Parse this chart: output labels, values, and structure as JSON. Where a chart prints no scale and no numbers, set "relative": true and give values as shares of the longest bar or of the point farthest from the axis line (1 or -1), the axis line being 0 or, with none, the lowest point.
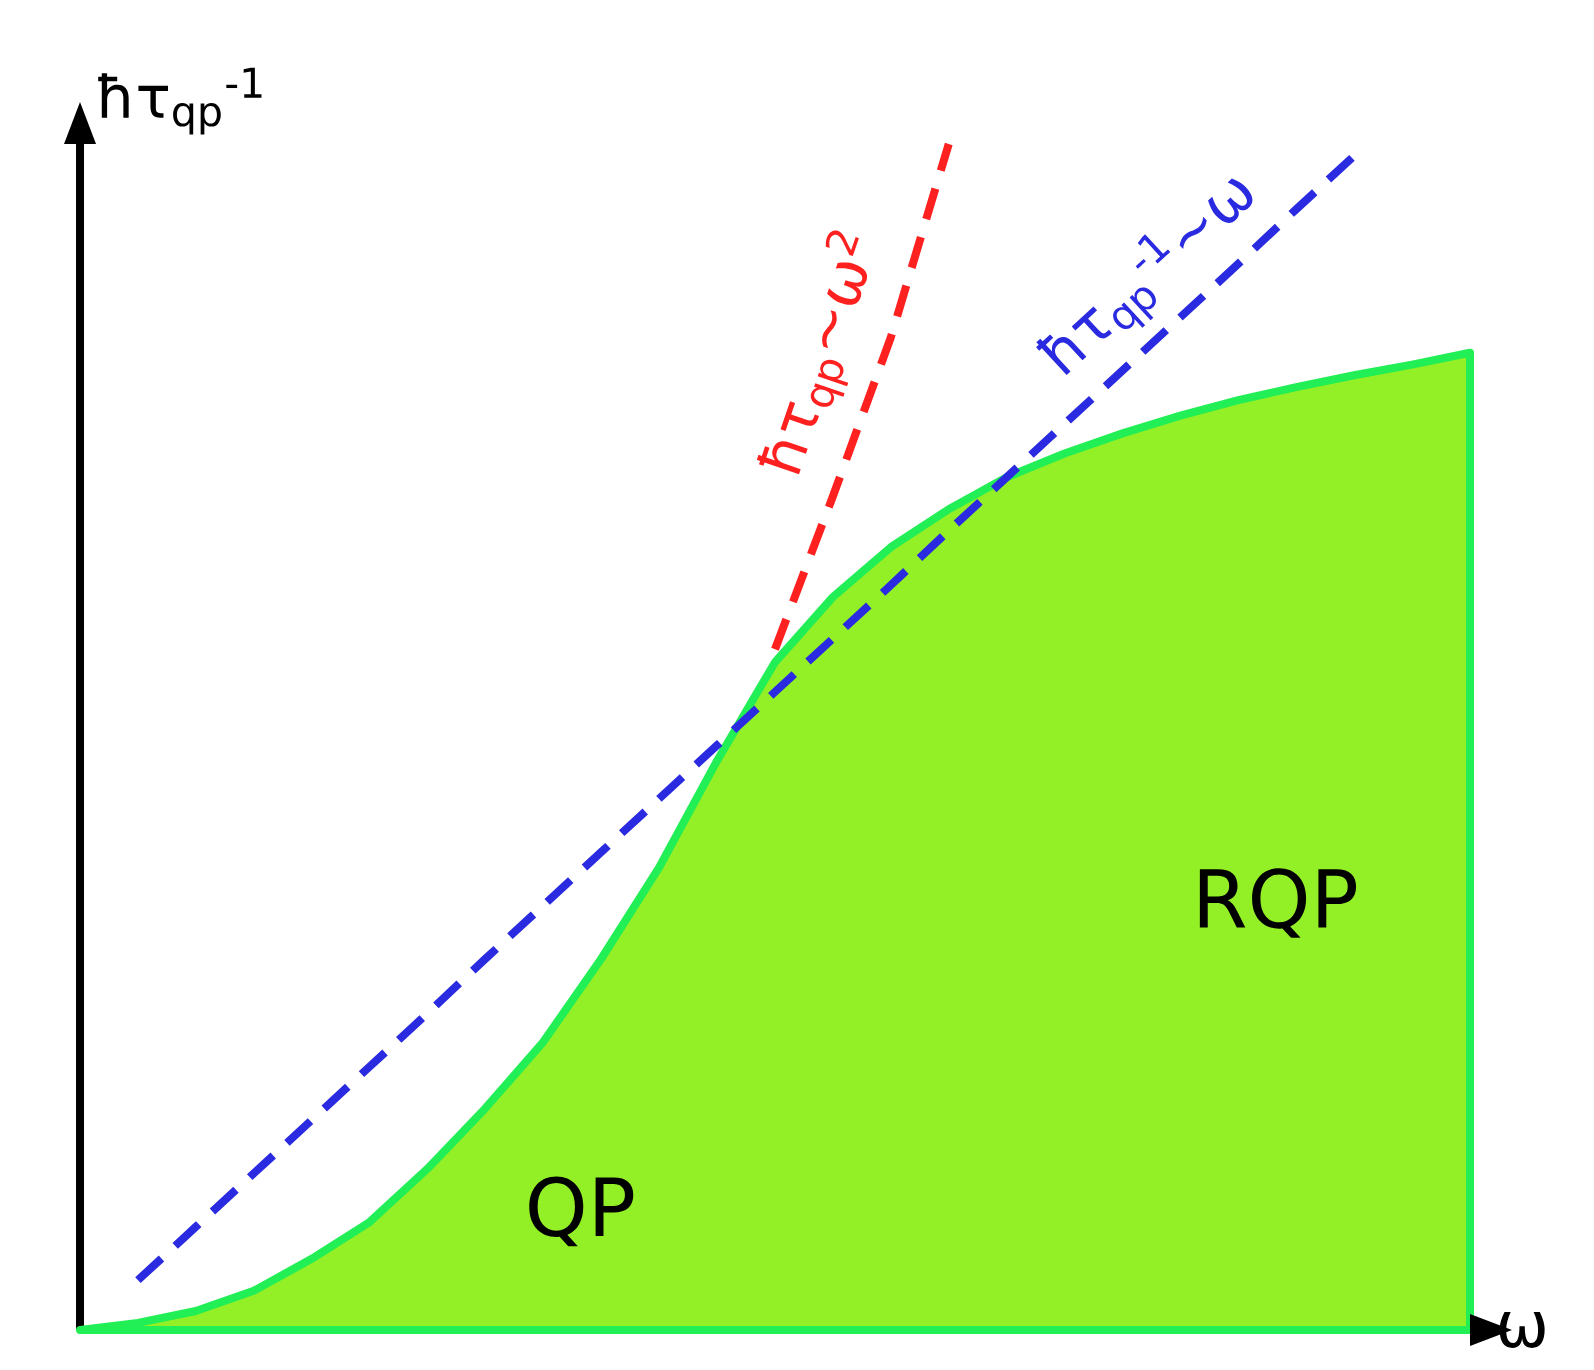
{
  "chart_data": {
    "type": "area",
    "relative": true,
    "xlabel": "ω",
    "ylabel": "ħτ$_{qp}$$^{-1}$",
    "categories": [
      null,
      null,
      null,
      null,
      null,
      null,
      null,
      null,
      null,
      null,
      null,
      null,
      null,
      null,
      null,
      null,
      null,
      null,
      null,
      null,
      null,
      null,
      null,
      null,
      null
    ],
    "series": [
      {
        "color": "#22ee55",
        "line_style": "solid",
        "values": [
          0,
          0.006,
          0.016,
          0.033,
          0.06,
          0.091,
          0.136,
          0.187,
          0.243,
          0.313,
          0.39,
          0.48,
          0.563,
          0.618,
          0.66,
          0.692,
          0.719,
          0.739,
          0.756,
          0.771,
          0.784,
          0.795,
          0.805,
          0.814,
          0.824
        ]
      },
      {
        "type": "line",
        "name": "ħτ$_{qp}$~ω$^{2}$",
        "color": "#ff2020",
        "line_style": "dashed",
        "values": [
          null,
          null,
          null,
          null,
          null,
          null,
          null,
          null,
          null,
          null,
          null,
          null,
          0.574,
          0.703,
          0.837,
          1.0,
          null,
          null,
          null,
          null,
          null,
          null,
          null,
          null,
          null
        ]
      },
      {
        "type": "line",
        "name": "ħτ$_{qp}$$^{-1}$~ω",
        "color": "#2a2ae0",
        "line_style": "dashed",
        "values": [
          null,
          0.042,
          0.087,
          0.132,
          0.177,
          0.222,
          0.267,
          0.313,
          0.358,
          0.403,
          0.448,
          0.493,
          0.538,
          0.583,
          0.628,
          0.674,
          0.719,
          0.764,
          0.809,
          0.854,
          0.899,
          0.945,
          0.99,
          null,
          null
        ]
      }
    ],
    "annotations": [
      "QP",
      "RQP"
    ]
  }
}
